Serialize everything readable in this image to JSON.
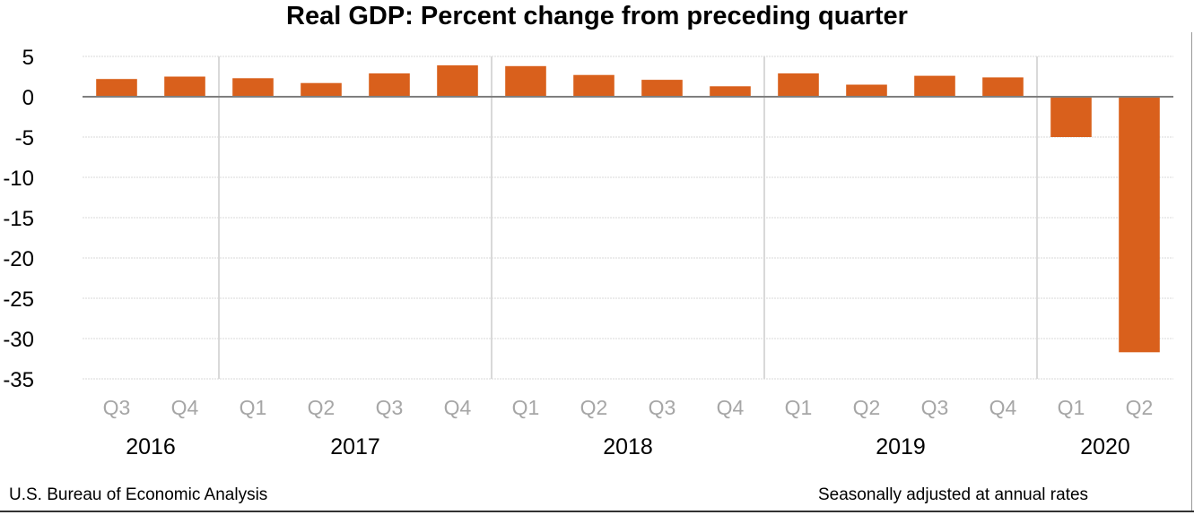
{
  "chart_data": {
    "type": "bar",
    "title": "Real GDP:  Percent change from preceding quarter",
    "xlabel": "",
    "ylabel": "",
    "ylim": [
      -35,
      5
    ],
    "yticks": [
      5,
      0,
      -5,
      -10,
      -15,
      -20,
      -25,
      -30,
      -35
    ],
    "grid": true,
    "categories": [
      "Q3",
      "Q4",
      "Q1",
      "Q2",
      "Q3",
      "Q4",
      "Q1",
      "Q2",
      "Q3",
      "Q4",
      "Q1",
      "Q2",
      "Q3",
      "Q4",
      "Q1",
      "Q2"
    ],
    "year_groups": [
      {
        "label": "2016",
        "count": 2
      },
      {
        "label": "2017",
        "count": 4
      },
      {
        "label": "2018",
        "count": 4
      },
      {
        "label": "2019",
        "count": 4
      },
      {
        "label": "2020",
        "count": 2
      }
    ],
    "series": [
      {
        "values": [
          2.2,
          2.5,
          2.3,
          1.7,
          2.9,
          3.9,
          3.8,
          2.7,
          2.1,
          1.3,
          2.9,
          1.5,
          2.6,
          2.4,
          -5.0,
          -31.7
        ]
      }
    ],
    "bar_color": "#d9601c",
    "source": "U.S. Bureau of Economic Analysis",
    "note": "Seasonally adjusted at annual rates"
  }
}
